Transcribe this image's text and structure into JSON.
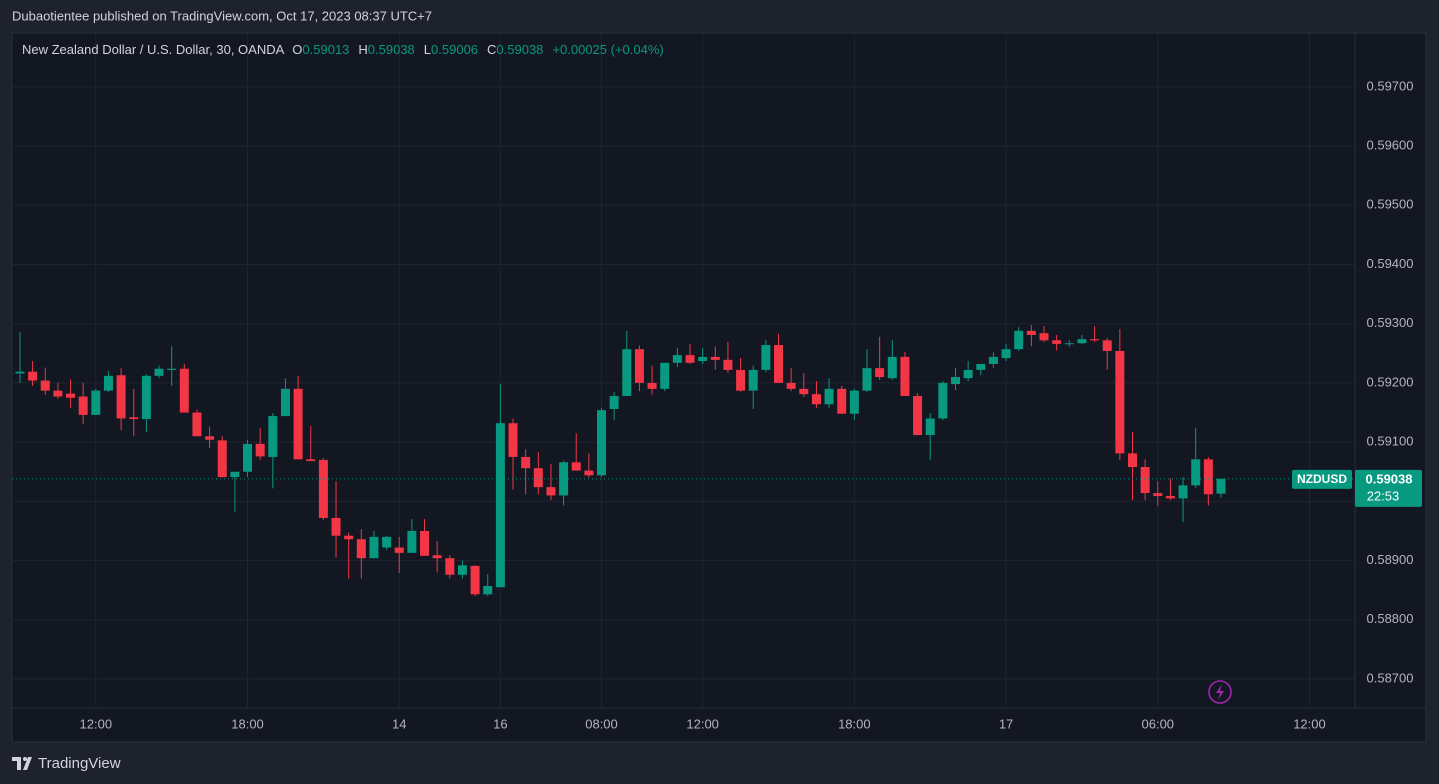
{
  "header": "Dubaotientee published on TradingView.com, Oct 17, 2023 08:37 UTC+7",
  "footer": "TradingView",
  "chart_data": {
    "type": "candlestick",
    "legend": {
      "title": "New Zealand Dollar / U.S. Dollar, 30, OANDA",
      "items": [
        {
          "label": "O",
          "value": 0.59013
        },
        {
          "label": "H",
          "value": 0.59038
        },
        {
          "label": "L",
          "value": 0.59006
        },
        {
          "label": "C",
          "value": 0.59038
        }
      ],
      "change": "+0.00025 (+0.04%)"
    },
    "symbol": "NZDUSD",
    "last_price": 0.59038,
    "countdown": "22:53",
    "up_color": "#089981",
    "down_color": "#f23645",
    "grid": true,
    "open": [
      0.59216,
      0.59219,
      0.59204,
      0.59187,
      0.59182,
      0.59177,
      0.59146,
      0.59187,
      0.59213,
      0.59142,
      0.59139,
      0.59212,
      0.59222,
      0.59224,
      0.5915,
      0.5911,
      0.59103,
      0.59041,
      0.5905,
      0.59097,
      0.59075,
      0.59144,
      0.5919,
      0.59071,
      0.5907,
      0.58972,
      0.58942,
      0.58936,
      0.58904,
      0.58922,
      0.58922,
      0.58913,
      0.5895,
      0.58909,
      0.58904,
      0.58876,
      0.58891,
      0.58843,
      0.58855,
      0.59132,
      0.59075,
      0.59056,
      0.59024,
      0.5901,
      0.59066,
      0.59052,
      0.59044,
      0.59156,
      0.59178,
      0.59257,
      0.592,
      0.5919,
      0.59234,
      0.59247,
      0.59237,
      0.59244,
      0.59239,
      0.59222,
      0.59187,
      0.59222,
      0.59264,
      0.592,
      0.5919,
      0.59181,
      0.59164,
      0.5919,
      0.59148,
      0.59187,
      0.59225,
      0.59208,
      0.59244,
      0.59178,
      0.59112,
      0.5914,
      0.59198,
      0.59208,
      0.59222,
      0.59232,
      0.59242,
      0.59257,
      0.59288,
      0.59284,
      0.59272,
      0.59266,
      0.59267,
      0.59274,
      0.59272,
      0.59254,
      0.59081,
      0.59058,
      0.59014,
      0.59009,
      0.59005,
      0.59027,
      0.59071,
      0.59013
    ],
    "high": [
      0.59286,
      0.59237,
      0.59226,
      0.592,
      0.59206,
      0.592,
      0.5919,
      0.5922,
      0.59225,
      0.5919,
      0.59215,
      0.59229,
      0.59262,
      0.59232,
      0.59155,
      0.59126,
      0.5911,
      0.5905,
      0.59104,
      0.59124,
      0.59149,
      0.59208,
      0.59212,
      0.59127,
      0.59073,
      0.59034,
      0.58947,
      0.58953,
      0.5895,
      0.58942,
      0.5894,
      0.5897,
      0.5897,
      0.58933,
      0.58909,
      0.589,
      0.58892,
      0.58877,
      0.59198,
      0.5914,
      0.59088,
      0.59083,
      0.59063,
      0.59069,
      0.59115,
      0.59081,
      0.59158,
      0.59185,
      0.59288,
      0.59263,
      0.59229,
      0.59234,
      0.59259,
      0.59266,
      0.59259,
      0.59262,
      0.59269,
      0.59242,
      0.59229,
      0.59272,
      0.59283,
      0.59225,
      0.59217,
      0.59203,
      0.59208,
      0.59195,
      0.5919,
      0.59257,
      0.59278,
      0.59272,
      0.59252,
      0.59183,
      0.59149,
      0.59203,
      0.59225,
      0.59237,
      0.59232,
      0.59252,
      0.59266,
      0.59294,
      0.59298,
      0.59296,
      0.59281,
      0.59272,
      0.59281,
      0.59296,
      0.59276,
      0.59291,
      0.59117,
      0.59071,
      0.59034,
      0.59039,
      0.59041,
      0.59124,
      0.59075,
      0.59038
    ],
    "low": [
      0.592,
      0.59195,
      0.5918,
      0.59173,
      0.59158,
      0.5913,
      0.59146,
      0.59185,
      0.5912,
      0.5911,
      0.59117,
      0.59208,
      0.59195,
      0.5915,
      0.5911,
      0.5909,
      0.5904,
      0.58982,
      0.59041,
      0.5907,
      0.59022,
      0.59144,
      0.59071,
      0.59068,
      0.58968,
      0.58905,
      0.5887,
      0.5887,
      0.58904,
      0.58918,
      0.58879,
      0.58913,
      0.58908,
      0.5888,
      0.5887,
      0.5887,
      0.5884,
      0.5884,
      0.58855,
      0.5902,
      0.59012,
      0.59012,
      0.59002,
      0.58993,
      0.59052,
      0.5904,
      0.59041,
      0.59137,
      0.59178,
      0.59186,
      0.5918,
      0.59186,
      0.59227,
      0.59232,
      0.59232,
      0.59222,
      0.59217,
      0.59185,
      0.59156,
      0.59218,
      0.592,
      0.59186,
      0.59176,
      0.59158,
      0.59158,
      0.59148,
      0.59137,
      0.59185,
      0.59205,
      0.59205,
      0.59178,
      0.59112,
      0.5907,
      0.59137,
      0.59188,
      0.59203,
      0.59213,
      0.59225,
      0.59237,
      0.59254,
      0.59262,
      0.59269,
      0.59255,
      0.59261,
      0.59266,
      0.59269,
      0.59222,
      0.5907,
      0.59002,
      0.59002,
      0.58992,
      0.59002,
      0.58965,
      0.59022,
      0.58993,
      0.59006
    ],
    "close": [
      0.59219,
      0.59204,
      0.59187,
      0.59177,
      0.59175,
      0.59146,
      0.59187,
      0.59212,
      0.5914,
      0.59139,
      0.59212,
      0.59224,
      0.59224,
      0.5915,
      0.5911,
      0.59104,
      0.59041,
      0.5905,
      0.59097,
      0.59076,
      0.59144,
      0.5919,
      0.59071,
      0.59068,
      0.58972,
      0.58942,
      0.58936,
      0.58904,
      0.5894,
      0.5894,
      0.58913,
      0.5895,
      0.58908,
      0.58904,
      0.58876,
      0.58892,
      0.58843,
      0.58857,
      0.59132,
      0.59075,
      0.59056,
      0.59024,
      0.5901,
      0.59066,
      0.59052,
      0.59044,
      0.59154,
      0.59178,
      0.59257,
      0.592,
      0.5919,
      0.59234,
      0.59247,
      0.59234,
      0.59244,
      0.59239,
      0.59222,
      0.59187,
      0.59222,
      0.59264,
      0.592,
      0.5919,
      0.59181,
      0.59164,
      0.5919,
      0.59148,
      0.59187,
      0.59225,
      0.5921,
      0.59244,
      0.59178,
      0.59112,
      0.5914,
      0.592,
      0.5921,
      0.59222,
      0.59232,
      0.59244,
      0.59257,
      0.59288,
      0.59281,
      0.59272,
      0.59266,
      0.59267,
      0.59274,
      0.59272,
      0.59254,
      0.59081,
      0.59058,
      0.59014,
      0.59009,
      0.59005,
      0.59027,
      0.59071,
      0.59012,
      0.59038
    ],
    "ylim": [
      0.58651,
      0.59791
    ],
    "yticks": [
      {
        "value": 0.597,
        "label": "0.59700"
      },
      {
        "value": 0.596,
        "label": "0.59600"
      },
      {
        "value": 0.595,
        "label": "0.59500"
      },
      {
        "value": 0.594,
        "label": "0.59400"
      },
      {
        "value": 0.593,
        "label": "0.59300"
      },
      {
        "value": 0.592,
        "label": "0.59200"
      },
      {
        "value": 0.591,
        "label": "0.59100"
      },
      {
        "value": 0.59,
        "label": "0.59000"
      },
      {
        "value": 0.589,
        "label": "0.58900"
      },
      {
        "value": 0.588,
        "label": "0.58800"
      },
      {
        "value": 0.587,
        "label": "0.58700"
      }
    ],
    "xlim": [
      -0.63,
      105.6
    ],
    "xticks": [
      {
        "value": 6,
        "label": "12:00"
      },
      {
        "value": 18,
        "label": "18:00"
      },
      {
        "value": 30,
        "label": "14"
      },
      {
        "value": 38,
        "label": "16"
      },
      {
        "value": 46,
        "label": "08:00"
      },
      {
        "value": 54,
        "label": "12:00"
      },
      {
        "value": 66,
        "label": "18:00"
      },
      {
        "value": 78,
        "label": "17"
      },
      {
        "value": 90,
        "label": "06:00"
      },
      {
        "value": 102,
        "label": "12:00"
      }
    ]
  }
}
